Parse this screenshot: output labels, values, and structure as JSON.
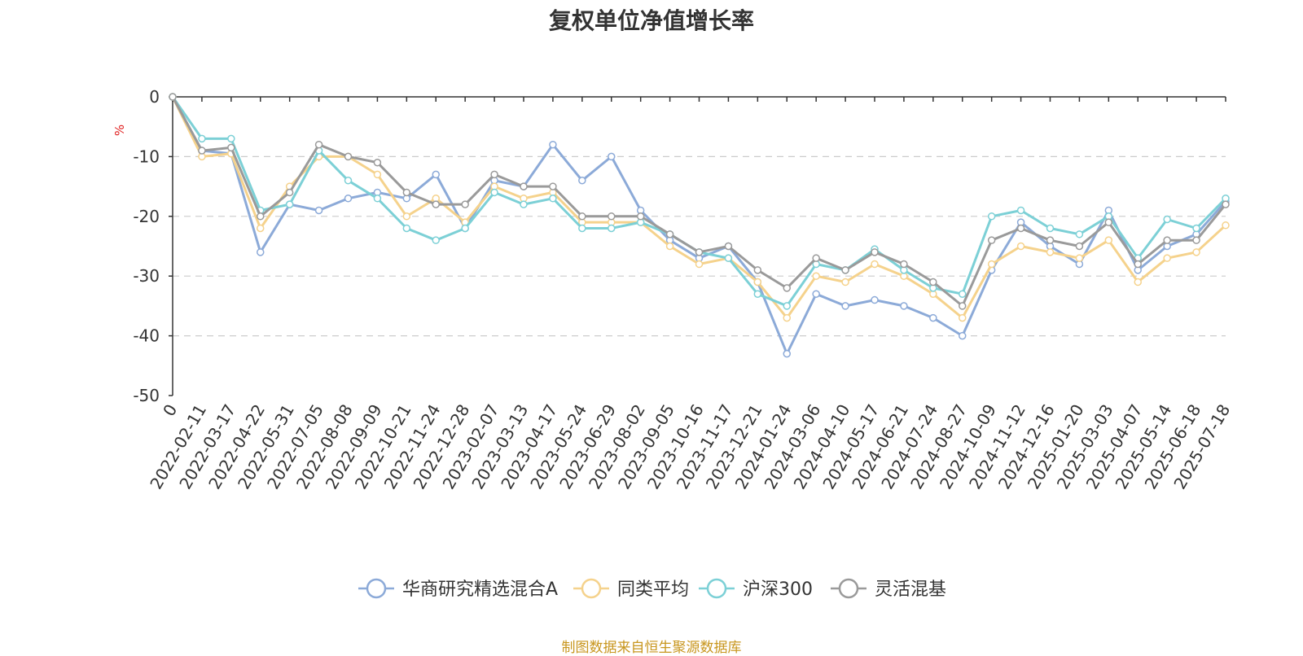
{
  "chart_data": {
    "type": "line",
    "title": "复权单位净值增长率",
    "ylabel": "%",
    "xlabel": "",
    "ylim": [
      -50,
      0
    ],
    "yticks": [
      0,
      -10,
      -20,
      -30,
      -40,
      -50
    ],
    "grid": "horizontal dashed",
    "legend_position": "bottom",
    "x_labels": [
      "0",
      "2022-02-11",
      "2022-03-17",
      "2022-04-22",
      "2022-05-31",
      "2022-07-05",
      "2022-08-08",
      "2022-09-09",
      "2022-10-21",
      "2022-11-24",
      "2022-12-28",
      "2023-02-07",
      "2023-03-13",
      "2023-04-17",
      "2023-05-24",
      "2023-06-29",
      "2023-08-02",
      "2023-09-05",
      "2023-10-16",
      "2023-11-17",
      "2023-12-21",
      "2024-01-24",
      "2024-03-06",
      "2024-04-10",
      "2024-05-17",
      "2024-06-21",
      "2024-07-24",
      "2024-08-27",
      "2024-10-09",
      "2024-11-12",
      "2024-12-16",
      "2025-01-20",
      "2025-03-03",
      "2025-04-07",
      "2025-05-14",
      "2025-06-18",
      "2025-07-18"
    ],
    "series": [
      {
        "name": "华商研究精选混合A",
        "color": "#8caad8",
        "values": [
          0,
          -9,
          -9.5,
          -26,
          -18,
          -19,
          -17,
          -16,
          -17,
          -13,
          -22,
          -14,
          -15,
          -8,
          -14,
          -10,
          -19,
          -24,
          -27,
          -25,
          -31,
          -43,
          -33,
          -35,
          -34,
          -35,
          -37,
          -40,
          -29,
          -21,
          -25,
          -28,
          -19,
          -29,
          -25,
          -23,
          -17.5
        ]
      },
      {
        "name": "同类平均",
        "color": "#f5d28c",
        "values": [
          0,
          -10,
          -9.5,
          -22,
          -15,
          -10,
          -10,
          -13,
          -20,
          -17,
          -21,
          -15,
          -17,
          -16,
          -21,
          -21,
          -21,
          -25,
          -28,
          -27,
          -31,
          -37,
          -30,
          -31,
          -28,
          -30,
          -33,
          -37,
          -28,
          -25,
          -26,
          -27,
          -24,
          -31,
          -27,
          -26,
          -21.5
        ]
      },
      {
        "name": "沪深300",
        "color": "#7cd0d6",
        "values": [
          0,
          -7,
          -7,
          -19,
          -18,
          -9,
          -14,
          -17,
          -22,
          -24,
          -22,
          -16,
          -18,
          -17,
          -22,
          -22,
          -21,
          -23,
          -26,
          -27,
          -33,
          -35,
          -28,
          -29,
          -25.5,
          -29,
          -32,
          -33,
          -20,
          -19,
          -22,
          -23,
          -20,
          -27,
          -20.5,
          -22,
          -17
        ]
      },
      {
        "name": "灵活混基",
        "color": "#9a9a9a",
        "values": [
          0,
          -9,
          -8.5,
          -20,
          -16,
          -8,
          -10,
          -11,
          -16,
          -18,
          -18,
          -13,
          -15,
          -15,
          -20,
          -20,
          -20,
          -23,
          -26,
          -25,
          -29,
          -32,
          -27,
          -29,
          -26,
          -28,
          -31,
          -35,
          -24,
          -22,
          -24,
          -25,
          -21,
          -28,
          -24,
          -24,
          -18
        ]
      }
    ]
  },
  "footer": "制图数据来自恒生聚源数据库"
}
